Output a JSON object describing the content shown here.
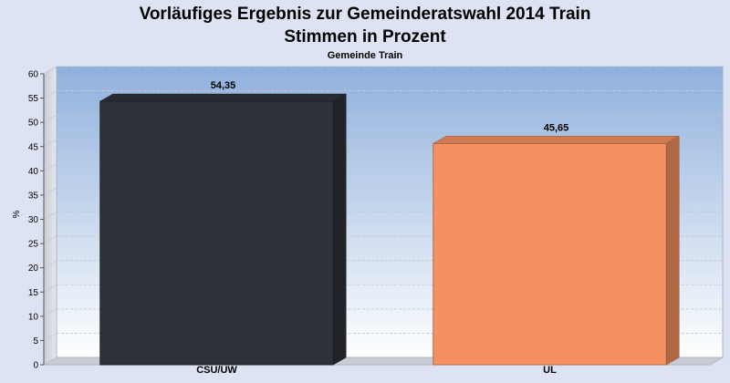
{
  "chart_data": {
    "type": "bar",
    "title": "Vorläufiges Ergebnis zur Gemeinderatswahl 2014 Train",
    "title_line2": "Stimmen in Prozent",
    "subtitle": "Gemeinde Train",
    "xlabel": "",
    "ylabel": "%",
    "ylim": [
      0,
      60
    ],
    "ytick_step": 5,
    "grid": true,
    "categories": [
      "CSU/UW",
      "UL"
    ],
    "values": [
      54.35,
      45.65
    ],
    "value_labels": [
      "54,35",
      "45,65"
    ],
    "colors": [
      "#2e3138",
      "#f59060"
    ]
  },
  "colors": {
    "page_background": "#dde3f3",
    "plot_top": "#8fb0dc",
    "plot_bottom": "#ffffff"
  }
}
